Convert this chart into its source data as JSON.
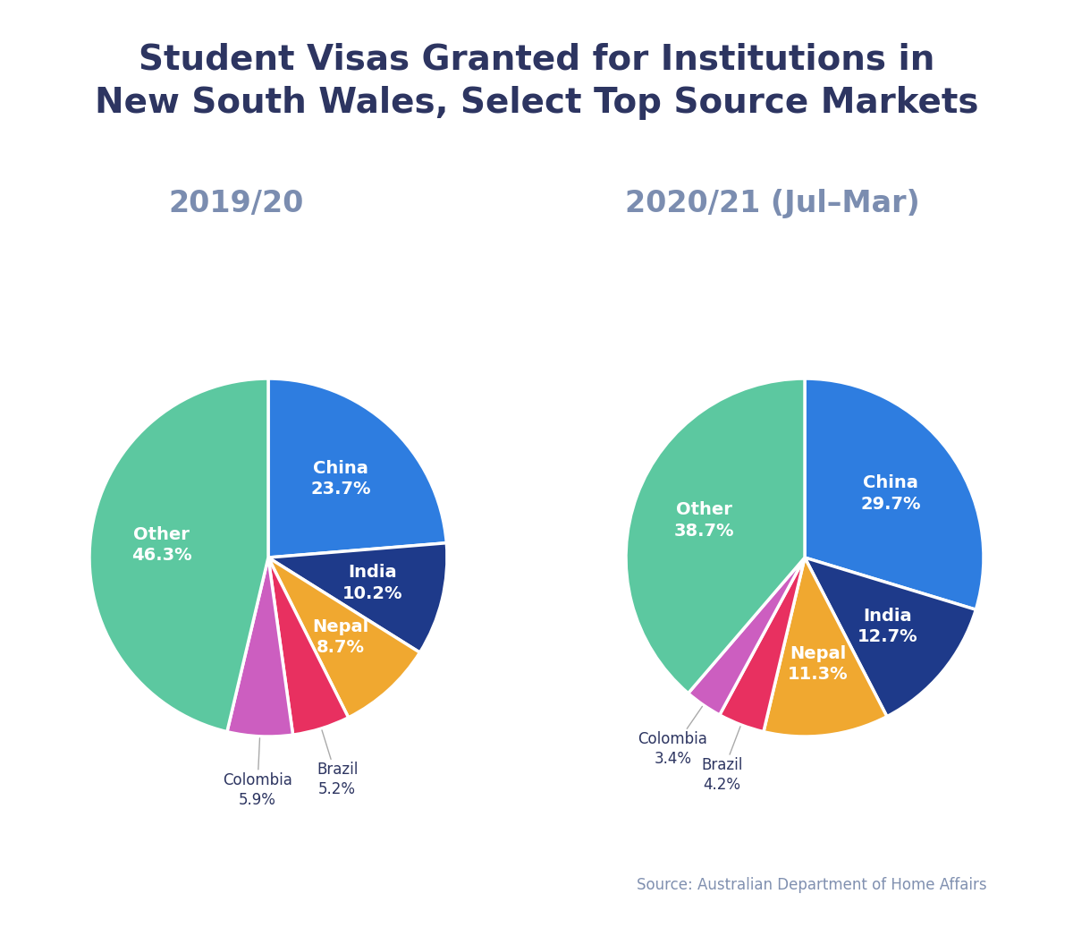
{
  "title": "Student Visas Granted for Institutions in\nNew South Wales, Select Top Source Markets",
  "title_color": "#2d3561",
  "subtitle_left": "2019/20",
  "subtitle_right": "2020/21 (Jul–Mar)",
  "subtitle_color": "#7b8db0",
  "source_text": "Source: Australian Department of Home Affairs",
  "source_color": "#8090b0",
  "pie1": {
    "labels": [
      "China",
      "India",
      "Nepal",
      "Brazil",
      "Colombia",
      "Other"
    ],
    "values": [
      23.7,
      10.2,
      8.7,
      5.2,
      5.9,
      46.3
    ],
    "colors": [
      "#2e7de0",
      "#1e3a8a",
      "#f0a830",
      "#e83060",
      "#cc5ec0",
      "#5cc8a0"
    ],
    "startangle": 90
  },
  "pie2": {
    "labels": [
      "China",
      "India",
      "Nepal",
      "Brazil",
      "Colombia",
      "Other"
    ],
    "values": [
      29.7,
      12.7,
      11.3,
      4.2,
      3.4,
      38.7
    ],
    "colors": [
      "#2e7de0",
      "#1e3a8a",
      "#f0a830",
      "#e83060",
      "#cc5ec0",
      "#5cc8a0"
    ],
    "startangle": 90
  }
}
